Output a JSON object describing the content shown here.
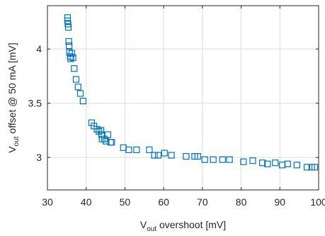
{
  "chart_data": {
    "type": "scatter",
    "xlabel_main": "V",
    "xlabel_sub": "out",
    "xlabel_rest": " overshoot [mV]",
    "ylabel_main": "V",
    "ylabel_sub": "out",
    "ylabel_rest": " offset @ 50 mA [mV]",
    "xlim": [
      30,
      100
    ],
    "ylim": [
      2.7,
      4.4
    ],
    "xticks": [
      30,
      40,
      50,
      60,
      70,
      80,
      90,
      100
    ],
    "yticks": [
      3,
      3.5,
      4
    ],
    "ytick_labels": [
      "3",
      "3.5",
      "4"
    ],
    "grid": true,
    "marker": "square",
    "color": "#0072BD",
    "points": [
      [
        35.2,
        4.29
      ],
      [
        35.2,
        4.26
      ],
      [
        35.3,
        4.23
      ],
      [
        35.4,
        4.2
      ],
      [
        35.5,
        4.07
      ],
      [
        35.6,
        4.03
      ],
      [
        35.7,
        3.97
      ],
      [
        35.9,
        3.93
      ],
      [
        36.0,
        3.91
      ],
      [
        36.3,
        3.96
      ],
      [
        36.6,
        3.92
      ],
      [
        36.9,
        3.82
      ],
      [
        37.4,
        3.72
      ],
      [
        37.9,
        3.65
      ],
      [
        38.5,
        3.59
      ],
      [
        39.2,
        3.52
      ],
      [
        41.4,
        3.32
      ],
      [
        42.0,
        3.29
      ],
      [
        42.8,
        3.26
      ],
      [
        43.3,
        3.24
      ],
      [
        43.8,
        3.25
      ],
      [
        44.0,
        3.21
      ],
      [
        44.1,
        3.17
      ],
      [
        44.7,
        3.17
      ],
      [
        45.1,
        3.15
      ],
      [
        45.6,
        3.21
      ],
      [
        46.3,
        3.14
      ],
      [
        46.6,
        3.14
      ],
      [
        49.6,
        3.09
      ],
      [
        51.0,
        3.07
      ],
      [
        53.0,
        3.07
      ],
      [
        56.3,
        3.07
      ],
      [
        57.6,
        3.02
      ],
      [
        58.6,
        3.02
      ],
      [
        60.2,
        3.04
      ],
      [
        62.0,
        3.02
      ],
      [
        65.8,
        3.01
      ],
      [
        68.0,
        3.01
      ],
      [
        68.8,
        3.01
      ],
      [
        70.6,
        2.98
      ],
      [
        72.8,
        2.98
      ],
      [
        75.2,
        2.98
      ],
      [
        77.0,
        2.98
      ],
      [
        80.6,
        2.96
      ],
      [
        83.0,
        2.97
      ],
      [
        85.5,
        2.95
      ],
      [
        86.8,
        2.94
      ],
      [
        88.8,
        2.95
      ],
      [
        90.6,
        2.93
      ],
      [
        92.0,
        2.94
      ],
      [
        94.4,
        2.93
      ],
      [
        97.0,
        2.91
      ],
      [
        98.2,
        2.91
      ],
      [
        99.0,
        2.91
      ]
    ]
  }
}
